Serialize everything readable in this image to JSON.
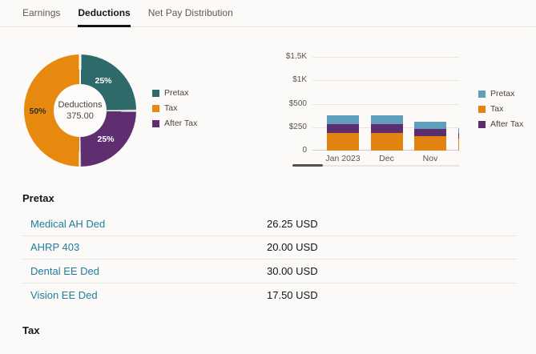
{
  "tabs": [
    {
      "label": "Earnings",
      "active": false
    },
    {
      "label": "Deductions",
      "active": true
    },
    {
      "label": "Net Pay Distribution",
      "active": false
    }
  ],
  "colors": {
    "pretax_donut": "#2e6a69",
    "tax_donut": "#e8890f",
    "aftertax_donut": "#5e2e70",
    "pretax_bar": "#5f9fbc",
    "tax_bar": "#e2830f",
    "aftertax_bar": "#5c2e70",
    "link": "#217e9b"
  },
  "chart_data": [
    {
      "type": "pie",
      "donut": true,
      "center_label": "Deductions",
      "center_value": "375.00",
      "slices": [
        {
          "label": "Pretax",
          "pct": 25,
          "pct_label": "25%",
          "color": "#2e6a69"
        },
        {
          "label": "Tax",
          "pct": 50,
          "pct_label": "50%",
          "color": "#e8890f"
        },
        {
          "label": "After Tax",
          "pct": 25,
          "pct_label": "25%",
          "color": "#5e2e70"
        }
      ],
      "legend": [
        "Pretax",
        "Tax",
        "After Tax"
      ],
      "legend_position": "right"
    },
    {
      "type": "bar",
      "stacked": true,
      "categories": [
        "Jan 2023",
        "Dec",
        "Nov",
        ""
      ],
      "series": [
        {
          "name": "Tax",
          "color": "#e2830f",
          "values": [
            187.5,
            187.5,
            155,
            125
          ]
        },
        {
          "name": "After Tax",
          "color": "#5c2e70",
          "values": [
            93.75,
            93.75,
            77.5,
            60
          ]
        },
        {
          "name": "Pretax",
          "color": "#5f9fbc",
          "values": [
            93.75,
            93.75,
            77.5,
            55
          ]
        }
      ],
      "legend": [
        "Pretax",
        "Tax",
        "After Tax"
      ],
      "legend_colors": [
        "#5f9fbc",
        "#e2830f",
        "#5c2e70"
      ],
      "y_ticks": [
        "0",
        "$250",
        "$500",
        "$1K",
        "$1.5K"
      ],
      "y_tick_values": [
        0,
        250,
        500,
        1000,
        1500
      ],
      "ylabel": "",
      "xlabel": "",
      "grid": true,
      "note": "fourth bar partially clipped at right edge; horizontal scrollbar below chart"
    }
  ],
  "sections": [
    {
      "title": "Pretax",
      "rows": [
        {
          "label": "Medical AH Ded",
          "value": "26.25 USD"
        },
        {
          "label": "AHRP 403",
          "value": "20.00 USD"
        },
        {
          "label": "Dental EE Ded",
          "value": "30.00 USD"
        },
        {
          "label": "Vision EE Ded",
          "value": "17.50 USD"
        }
      ]
    },
    {
      "title": "Tax",
      "rows": []
    }
  ]
}
